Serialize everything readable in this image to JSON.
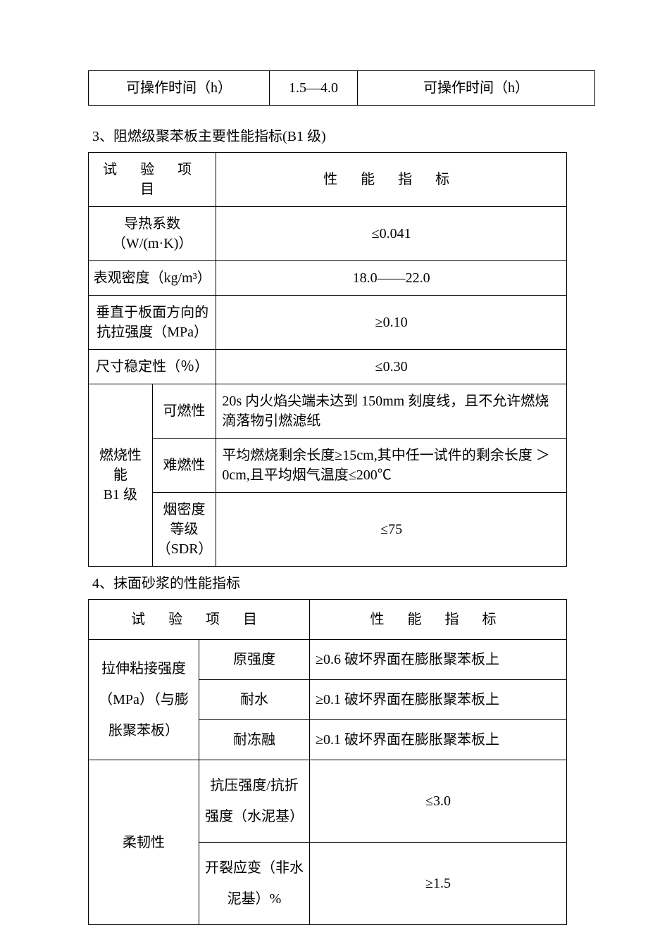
{
  "table1": {
    "row": [
      "可操作时间（h）",
      "1.5—4.0",
      "可操作时间（h）"
    ]
  },
  "section3": {
    "title": "3、阻燃级聚苯板主要性能指标(B1 级)",
    "header": [
      "试 验 项 目",
      "性 能 指 标"
    ],
    "rows_simple": [
      [
        "导热系数（W/(m·K)）",
        "≤0.041"
      ],
      [
        "表观密度（kg/m³）",
        "18.0——22.0"
      ],
      [
        "垂直于板面方向的抗拉强度（MPa）",
        "≥0.10"
      ],
      [
        "尺寸稳定性（％）",
        "≤0.30"
      ]
    ],
    "burn_label": "燃烧性能\nB1 级",
    "burn_rows": [
      {
        "name": "可燃性",
        "val": "20s 内火焰尖端未达到 150mm 刻度线，且不允许燃烧滴落物引燃滤纸"
      },
      {
        "name": "难燃性",
        "val": "平均燃烧剩余长度≥15cm,其中任一试件的剩余长度 ＞0cm,且平均烟气温度≤200℃"
      },
      {
        "name": "烟密度等级（SDR）",
        "val": "≤75"
      }
    ]
  },
  "section4": {
    "title": "4、抹面砂浆的性能指标",
    "header": [
      "试 验 项 目",
      "性 能 指 标"
    ],
    "tensile_label": "拉伸粘接强度（MPa）（与膨胀聚苯板）",
    "tensile_rows": [
      {
        "name": "原强度",
        "val": "≥0.6 破坏界面在膨胀聚苯板上"
      },
      {
        "name": "耐水",
        "val": "≥0.1 破坏界面在膨胀聚苯板上"
      },
      {
        "name": "耐冻融",
        "val": "≥0.1 破坏界面在膨胀聚苯板上"
      }
    ],
    "flex_label": "柔韧性",
    "flex_rows": [
      {
        "name": "抗压强度/抗折强度（水泥基）",
        "val": "≤3.0"
      },
      {
        "name": "开裂应变（非水泥基）%",
        "val": "≥1.5"
      }
    ]
  }
}
